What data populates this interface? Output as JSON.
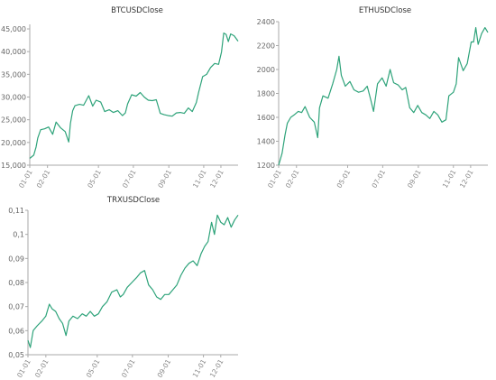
{
  "chart_data": [
    {
      "type": "line",
      "title": "BTCUSDClose",
      "xlabel": "",
      "ylabel": "",
      "ylim": [
        15000,
        46000
      ],
      "yticks": [
        15000,
        20000,
        25000,
        30000,
        35000,
        40000,
        45000
      ],
      "ytick_labels": [
        "15,000",
        "20,000",
        "25,000",
        "30,000",
        "35,000",
        "40,000",
        "45,000"
      ],
      "xlim": [
        "2023-01-01",
        "2023-12-31"
      ],
      "xticks": [
        "2023-01-01",
        "2023-02-01",
        "2023-05-01",
        "2023-07-01",
        "2023-09-01",
        "2023-11-01",
        "2023-12-01"
      ],
      "xtick_labels": [
        "01-01",
        "02-01",
        "05-01",
        "07-01",
        "09-01",
        "11-01",
        "12-01"
      ],
      "color": "#2ea37a",
      "grid": false,
      "series": [
        {
          "x": [
            "2023-01-01",
            "2023-01-08",
            "2023-01-12",
            "2023-01-15",
            "2023-01-20",
            "2023-01-27",
            "2023-02-03",
            "2023-02-10",
            "2023-02-16",
            "2023-02-24",
            "2023-03-04",
            "2023-03-10",
            "2023-03-13",
            "2023-03-17",
            "2023-03-21",
            "2023-03-29",
            "2023-04-05",
            "2023-04-14",
            "2023-04-21",
            "2023-04-27",
            "2023-05-05",
            "2023-05-12",
            "2023-05-20",
            "2023-05-27",
            "2023-06-04",
            "2023-06-12",
            "2023-06-17",
            "2023-06-21",
            "2023-06-28",
            "2023-07-06",
            "2023-07-13",
            "2023-07-20",
            "2023-07-27",
            "2023-08-03",
            "2023-08-10",
            "2023-08-17",
            "2023-08-24",
            "2023-08-31",
            "2023-09-07",
            "2023-09-14",
            "2023-09-21",
            "2023-09-28",
            "2023-10-05",
            "2023-10-12",
            "2023-10-19",
            "2023-10-23",
            "2023-10-30",
            "2023-11-06",
            "2023-11-13",
            "2023-11-20",
            "2023-11-27",
            "2023-12-02",
            "2023-12-06",
            "2023-12-10",
            "2023-12-14",
            "2023-12-18",
            "2023-12-24",
            "2023-12-31"
          ],
          "y": [
            16500,
            17200,
            19000,
            21000,
            22800,
            23000,
            23400,
            21800,
            24500,
            23200,
            22400,
            20100,
            24200,
            27000,
            28100,
            28400,
            28200,
            30300,
            28000,
            29300,
            28900,
            26800,
            27200,
            26600,
            27000,
            25900,
            26500,
            28500,
            30500,
            30200,
            31000,
            30000,
            29300,
            29200,
            29400,
            26400,
            26100,
            25900,
            25800,
            26500,
            26600,
            26400,
            27600,
            26800,
            28800,
            31000,
            34500,
            35000,
            36500,
            37400,
            37200,
            39900,
            44100,
            43800,
            42200,
            43900,
            43500,
            42300
          ]
        }
      ]
    },
    {
      "type": "line",
      "title": "ETHUSDClose",
      "xlabel": "",
      "ylabel": "",
      "ylim": [
        1200,
        2400
      ],
      "yticks": [
        1200,
        1400,
        1600,
        1800,
        2000,
        2200,
        2400
      ],
      "ytick_labels": [
        "1200",
        "1400",
        "1600",
        "1800",
        "2000",
        "2200",
        "2400"
      ],
      "xlim": [
        "2023-01-01",
        "2023-12-31"
      ],
      "xticks": [
        "2023-01-01",
        "2023-02-01",
        "2023-05-01",
        "2023-07-01",
        "2023-09-01",
        "2023-11-01",
        "2023-12-01"
      ],
      "xtick_labels": [
        "01-01",
        "02-01",
        "05-01",
        "07-01",
        "09-01",
        "11-01",
        "12-01"
      ],
      "color": "#2ea37a",
      "grid": false,
      "series": [
        {
          "x": [
            "2023-01-01",
            "2023-01-07",
            "2023-01-12",
            "2023-01-16",
            "2023-01-22",
            "2023-01-28",
            "2023-02-04",
            "2023-02-10",
            "2023-02-16",
            "2023-02-24",
            "2023-03-04",
            "2023-03-10",
            "2023-03-13",
            "2023-03-19",
            "2023-03-28",
            "2023-04-05",
            "2023-04-12",
            "2023-04-16",
            "2023-04-20",
            "2023-04-27",
            "2023-05-05",
            "2023-05-12",
            "2023-05-20",
            "2023-05-28",
            "2023-06-04",
            "2023-06-10",
            "2023-06-15",
            "2023-06-22",
            "2023-06-30",
            "2023-07-07",
            "2023-07-14",
            "2023-07-20",
            "2023-07-28",
            "2023-08-04",
            "2023-08-10",
            "2023-08-17",
            "2023-08-24",
            "2023-08-31",
            "2023-09-07",
            "2023-09-14",
            "2023-09-21",
            "2023-09-28",
            "2023-10-05",
            "2023-10-12",
            "2023-10-19",
            "2023-10-24",
            "2023-11-01",
            "2023-11-06",
            "2023-11-10",
            "2023-11-18",
            "2023-11-25",
            "2023-12-02",
            "2023-12-06",
            "2023-12-10",
            "2023-12-14",
            "2023-12-20",
            "2023-12-26",
            "2023-12-31"
          ],
          "y": [
            1200,
            1300,
            1450,
            1550,
            1600,
            1620,
            1650,
            1640,
            1690,
            1600,
            1560,
            1430,
            1680,
            1780,
            1760,
            1880,
            2000,
            2110,
            1950,
            1860,
            1900,
            1830,
            1810,
            1820,
            1860,
            1750,
            1650,
            1880,
            1930,
            1860,
            2000,
            1890,
            1870,
            1830,
            1850,
            1680,
            1640,
            1700,
            1640,
            1620,
            1590,
            1650,
            1620,
            1560,
            1580,
            1780,
            1810,
            1880,
            2100,
            1990,
            2050,
            2230,
            2230,
            2350,
            2210,
            2300,
            2350,
            2310
          ]
        }
      ]
    },
    {
      "type": "line",
      "title": "TRXUSDClose",
      "xlabel": "",
      "ylabel": "",
      "ylim": [
        0.05,
        0.11
      ],
      "yticks": [
        0.05,
        0.06,
        0.07,
        0.08,
        0.09,
        0.1,
        0.11
      ],
      "ytick_labels": [
        "0,05",
        "0,06",
        "0,07",
        "0,08",
        "0,09",
        "0,1",
        "0,11"
      ],
      "xlim": [
        "2023-01-01",
        "2023-12-31"
      ],
      "xticks": [
        "2023-01-01",
        "2023-02-01",
        "2023-05-01",
        "2023-07-01",
        "2023-09-01",
        "2023-11-01",
        "2023-12-01"
      ],
      "xtick_labels": [
        "01-01",
        "02-01",
        "05-01",
        "07-01",
        "09-01",
        "11-01",
        "12-01"
      ],
      "color": "#2ea37a",
      "grid": false,
      "series": [
        {
          "x": [
            "2023-01-01",
            "2023-01-05",
            "2023-01-10",
            "2023-01-17",
            "2023-01-25",
            "2023-02-01",
            "2023-02-07",
            "2023-02-12",
            "2023-02-18",
            "2023-02-24",
            "2023-03-02",
            "2023-03-08",
            "2023-03-13",
            "2023-03-20",
            "2023-03-28",
            "2023-04-05",
            "2023-04-12",
            "2023-04-19",
            "2023-04-26",
            "2023-05-03",
            "2023-05-10",
            "2023-05-18",
            "2023-05-26",
            "2023-06-04",
            "2023-06-10",
            "2023-06-15",
            "2023-06-22",
            "2023-06-30",
            "2023-07-08",
            "2023-07-15",
            "2023-07-22",
            "2023-07-29",
            "2023-08-05",
            "2023-08-12",
            "2023-08-19",
            "2023-08-26",
            "2023-09-02",
            "2023-09-09",
            "2023-09-16",
            "2023-09-23",
            "2023-09-30",
            "2023-10-07",
            "2023-10-14",
            "2023-10-21",
            "2023-10-28",
            "2023-11-03",
            "2023-11-09",
            "2023-11-15",
            "2023-11-20",
            "2023-11-25",
            "2023-12-01",
            "2023-12-07",
            "2023-12-13",
            "2023-12-19",
            "2023-12-25",
            "2023-12-31"
          ],
          "y": [
            0.056,
            0.053,
            0.06,
            0.062,
            0.064,
            0.066,
            0.071,
            0.069,
            0.068,
            0.065,
            0.063,
            0.058,
            0.064,
            0.066,
            0.065,
            0.067,
            0.066,
            0.068,
            0.066,
            0.067,
            0.07,
            0.072,
            0.076,
            0.077,
            0.074,
            0.075,
            0.078,
            0.08,
            0.082,
            0.084,
            0.085,
            0.079,
            0.077,
            0.074,
            0.073,
            0.075,
            0.075,
            0.077,
            0.079,
            0.083,
            0.086,
            0.088,
            0.089,
            0.087,
            0.092,
            0.095,
            0.097,
            0.105,
            0.1,
            0.108,
            0.105,
            0.104,
            0.107,
            0.103,
            0.106,
            0.108
          ]
        }
      ]
    }
  ]
}
